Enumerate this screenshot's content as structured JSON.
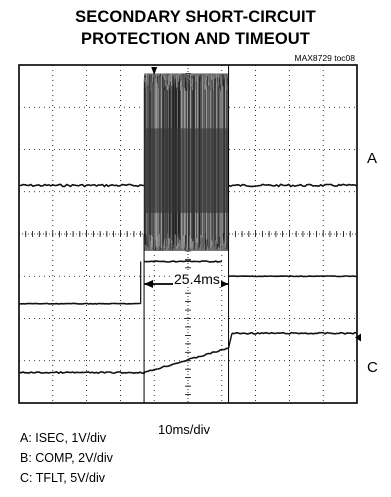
{
  "title_line1": "SECONDARY SHORT-CIRCUIT",
  "title_line2": "PROTECTION AND TIMEOUT",
  "figure_code": "MAX8729 toc08",
  "channel_labels": {
    "a": "A",
    "c": "C"
  },
  "timebase": "10ms/div",
  "legend": [
    "A: ISEC, 1V/div",
    "B: COMP, 2V/div",
    "C: TFLT, 5V/div"
  ],
  "measurement": "25.4ms",
  "chart_data": {
    "type": "line",
    "title": "SECONDARY SHORT-CIRCUIT PROTECTION AND TIMEOUT",
    "grid": true,
    "x_divisions": 10,
    "y_divisions": 8,
    "time_per_div_ms": 10,
    "series": [
      {
        "name": "A: ISEC, 1V/div",
        "points_div": [
          [
            0,
            5.15
          ],
          [
            3.7,
            5.15
          ],
          [
            3.7,
            6.4
          ],
          [
            6.2,
            6.4
          ],
          [
            6.2,
            5.15
          ],
          [
            10,
            5.15
          ]
        ],
        "burst": {
          "start_div": 3.7,
          "end_div": 6.2,
          "high_div": 7.8,
          "low_div": 3.6
        }
      },
      {
        "name": "B: COMP, 2V/div",
        "points_div": [
          [
            0,
            2.35
          ],
          [
            3.6,
            2.35
          ],
          [
            3.6,
            1.1
          ],
          [
            3.7,
            3.35
          ],
          [
            6.0,
            3.35
          ],
          [
            6.2,
            3.0
          ],
          [
            10,
            3.0
          ]
        ]
      },
      {
        "name": "C: TFLT, 5V/div",
        "points_div": [
          [
            0,
            0.72
          ],
          [
            3.7,
            0.72
          ],
          [
            6.2,
            1.3
          ],
          [
            6.3,
            1.65
          ],
          [
            10,
            1.65
          ]
        ]
      }
    ],
    "measurement": {
      "label": "25.4ms",
      "start_div": 3.7,
      "end_div": 6.2
    }
  }
}
